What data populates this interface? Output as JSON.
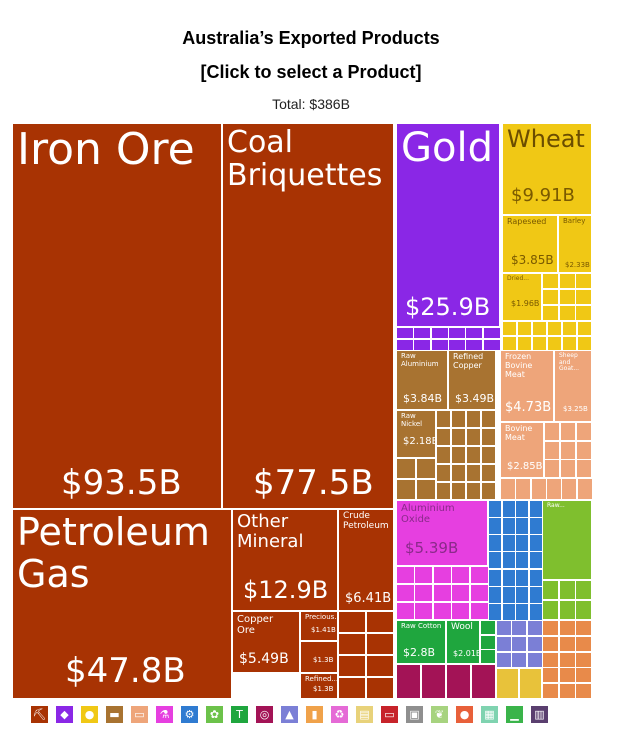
{
  "header": {
    "title": "Australia’s Exported Products",
    "subtitle": "[Click to select a Product]",
    "total_label": "Total: $386B"
  },
  "colors": {
    "mineral": "#a83303",
    "precious": "#8a27e6",
    "vegetable": "#f0c815",
    "metals": "#a87331",
    "animal": "#eea57a",
    "chemical": "#e63fe0",
    "machinery": "#2f7bd1",
    "textiles": "#1fa63e",
    "plastics": "#a31356",
    "transport": "#7b7fd6",
    "foodstuffs": "#7fbf2e"
  },
  "chart_data": {
    "type": "treemap",
    "title": "Australia’s Exported Products",
    "subtitle": "[Click to select a Product]",
    "total": "Total: $386B",
    "products": [
      {
        "name": "Iron Ore",
        "value": 93.5,
        "value_label": "$93.5B",
        "category": "mineral"
      },
      {
        "name": "Coal Briquettes",
        "value": 77.5,
        "value_label": "$77.5B",
        "category": "mineral"
      },
      {
        "name": "Petroleum Gas",
        "value": 47.8,
        "value_label": "$47.8B",
        "category": "mineral"
      },
      {
        "name": "Other Mineral",
        "value": 12.9,
        "value_label": "$12.9B",
        "category": "mineral"
      },
      {
        "name": "Crude Petroleum",
        "value": 6.41,
        "value_label": "$6.41B",
        "category": "mineral"
      },
      {
        "name": "Copper Ore",
        "value": 5.49,
        "value_label": "$5.49B",
        "category": "mineral"
      },
      {
        "name": "Precious...",
        "value": 1.41,
        "value_label": "$1.41B",
        "category": "mineral"
      },
      {
        "name": "",
        "value": 1.3,
        "value_label": "$1.3B",
        "category": "mineral"
      },
      {
        "name": "Refined...",
        "value": 1.3,
        "value_label": "$1.3B",
        "category": "mineral"
      },
      {
        "name": "Gold",
        "value": 25.9,
        "value_label": "$25.9B",
        "category": "precious"
      },
      {
        "name": "Wheat",
        "value": 9.91,
        "value_label": "$9.91B",
        "category": "vegetable"
      },
      {
        "name": "Rapeseed",
        "value": 3.85,
        "value_label": "$3.85B",
        "category": "vegetable"
      },
      {
        "name": "Barley",
        "value": 2.33,
        "value_label": "$2.33B",
        "category": "vegetable"
      },
      {
        "name": "Dried...",
        "value": 1.96,
        "value_label": "$1.96B",
        "category": "vegetable"
      },
      {
        "name": "Raw Aluminium",
        "value": 3.84,
        "value_label": "$3.84B",
        "category": "metals"
      },
      {
        "name": "Refined Copper",
        "value": 3.49,
        "value_label": "$3.49B",
        "category": "metals"
      },
      {
        "name": "Raw Nickel",
        "value": 2.18,
        "value_label": "$2.18B",
        "category": "metals"
      },
      {
        "name": "Frozen Bovine Meat",
        "value": 4.73,
        "value_label": "$4.73B",
        "category": "animal"
      },
      {
        "name": "Sheep and Goat...",
        "value": 3.25,
        "value_label": "$3.25B",
        "category": "animal"
      },
      {
        "name": "Bovine Meat",
        "value": 2.85,
        "value_label": "$2.85B",
        "category": "animal"
      },
      {
        "name": "Aluminium Oxide",
        "value": 5.39,
        "value_label": "$5.39B",
        "category": "chemical"
      },
      {
        "name": "Raw Cotton",
        "value": 2.8,
        "value_label": "$2.8B",
        "category": "textiles"
      },
      {
        "name": "Wool",
        "value": 2.01,
        "value_label": "$2.01B",
        "category": "textiles"
      },
      {
        "name": "Raw...",
        "value": null,
        "value_label": "",
        "category": "foodstuffs"
      }
    ]
  },
  "legend": [
    {
      "icon": "pickaxe-icon",
      "glyph": "⛏",
      "color": "#a83303"
    },
    {
      "icon": "gem-icon",
      "glyph": "◆",
      "color": "#8a27e6"
    },
    {
      "icon": "fruit-icon",
      "glyph": "●",
      "color": "#f0c815"
    },
    {
      "icon": "anvil-icon",
      "glyph": "▬",
      "color": "#a87331"
    },
    {
      "icon": "animal-icon",
      "glyph": "▭",
      "color": "#eea57a"
    },
    {
      "icon": "flask-icon",
      "glyph": "⚗",
      "color": "#e63fe0"
    },
    {
      "icon": "gear-icon",
      "glyph": "⚙",
      "color": "#2f7bd1"
    },
    {
      "icon": "plant-icon",
      "glyph": "✿",
      "color": "#6cc24a"
    },
    {
      "icon": "shirt-icon",
      "glyph": "T",
      "color": "#1fa63e"
    },
    {
      "icon": "tire-icon",
      "glyph": "◎",
      "color": "#a31356"
    },
    {
      "icon": "car-icon",
      "glyph": "▲",
      "color": "#7b7fd6"
    },
    {
      "icon": "bottle-icon",
      "glyph": "▮",
      "color": "#f0a24a"
    },
    {
      "icon": "recycle-icon",
      "glyph": "♻",
      "color": "#e56ad6"
    },
    {
      "icon": "paper-icon",
      "glyph": "▤",
      "color": "#e8d27a"
    },
    {
      "icon": "instrument-icon",
      "glyph": "▭",
      "color": "#c7232a"
    },
    {
      "icon": "box-icon",
      "glyph": "▣",
      "color": "#8f8f8f"
    },
    {
      "icon": "hide-icon",
      "glyph": "❦",
      "color": "#a7d37f"
    },
    {
      "icon": "footwear-icon",
      "glyph": "●",
      "color": "#e8603a"
    },
    {
      "icon": "stone-icon",
      "glyph": "▦",
      "color": "#7fd3b0"
    },
    {
      "icon": "shoe-icon",
      "glyph": "▁",
      "color": "#3ab44a"
    },
    {
      "icon": "art-icon",
      "glyph": "▥",
      "color": "#5a3f6f"
    }
  ]
}
